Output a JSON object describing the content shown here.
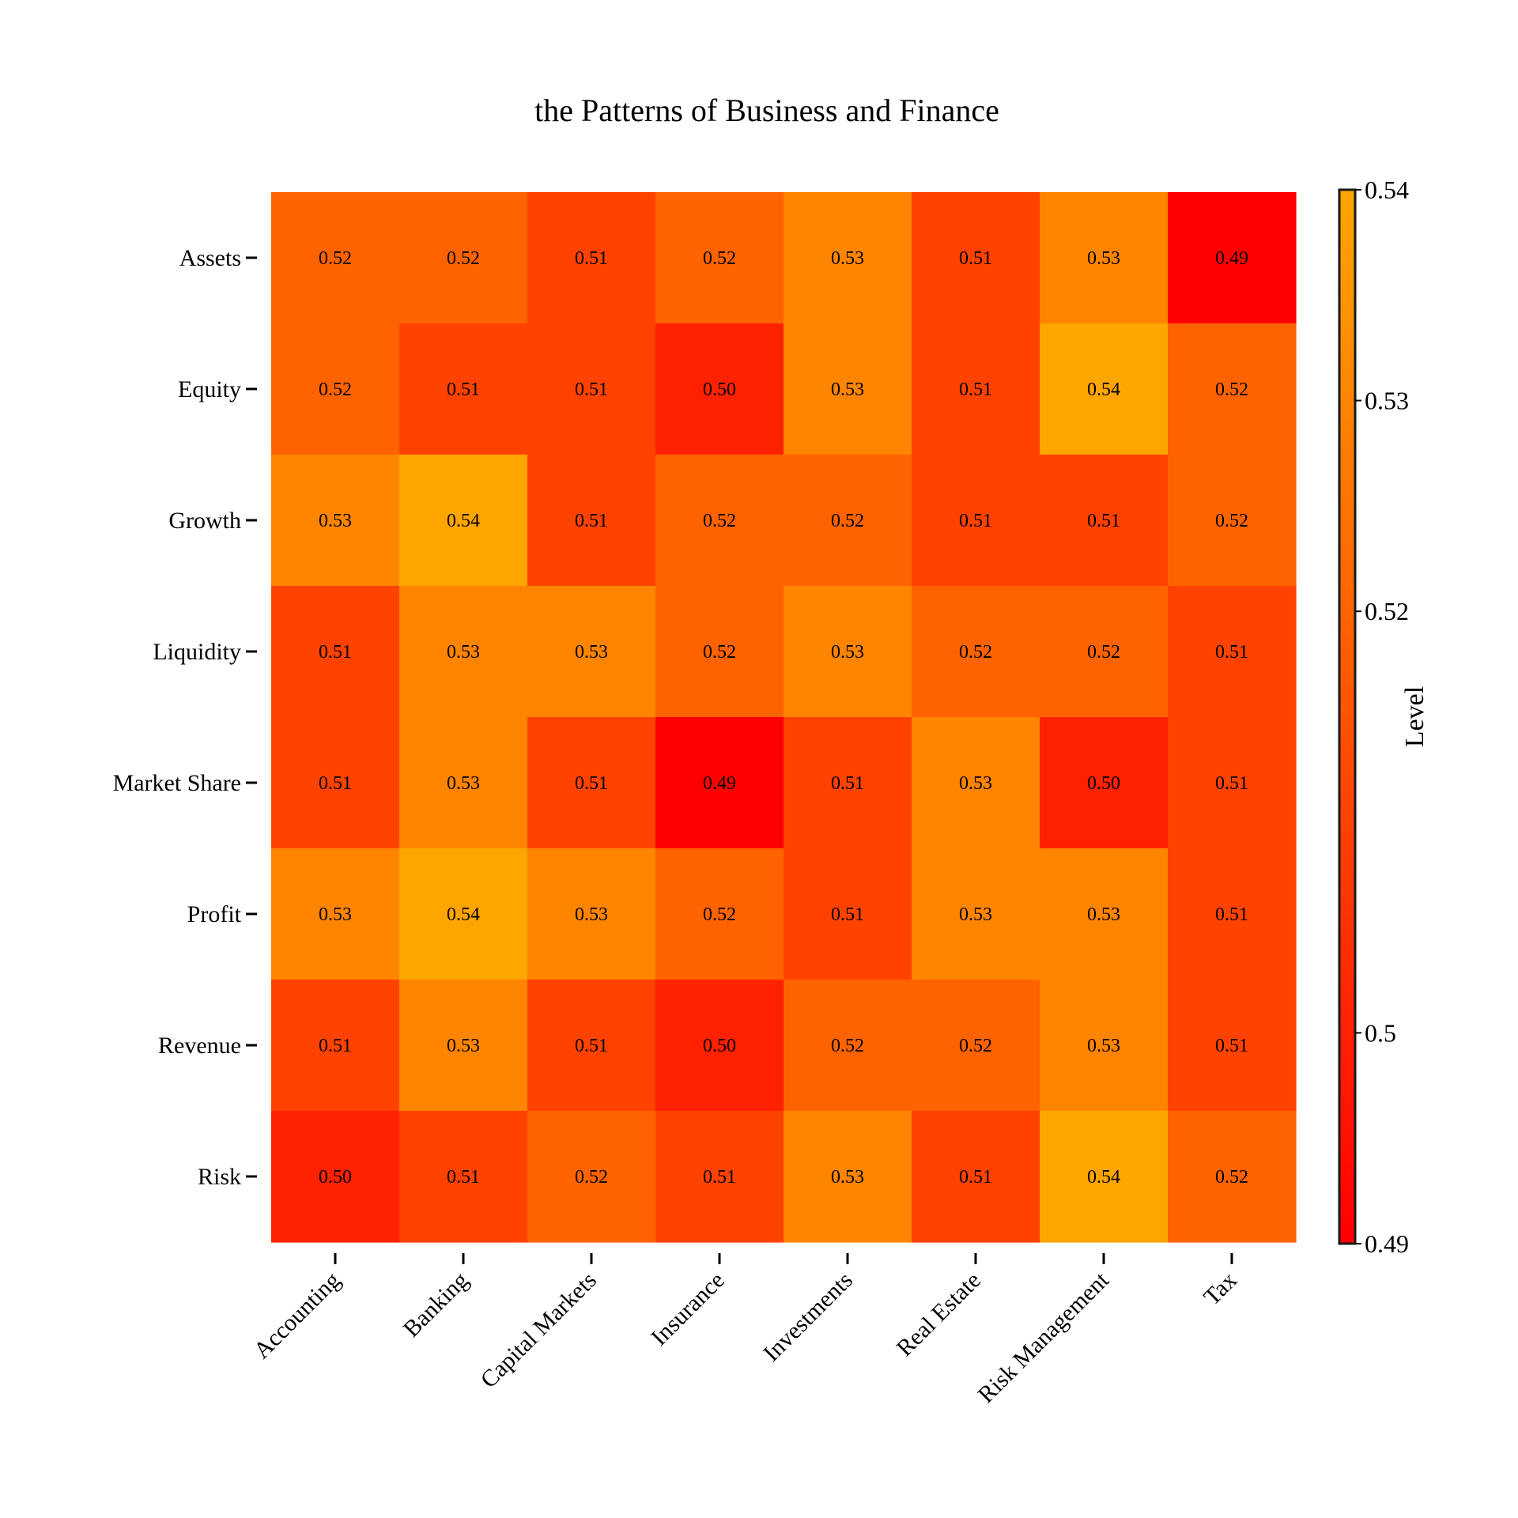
{
  "chart_data": {
    "type": "heatmap",
    "title": "the Patterns of Business and Finance",
    "rows": [
      "Assets",
      "Equity",
      "Growth",
      "Liquidity",
      "Market Share",
      "Profit",
      "Revenue",
      "Risk"
    ],
    "columns": [
      "Accounting",
      "Banking",
      "Capital Markets",
      "Insurance",
      "Investments",
      "Real Estate",
      "Risk Management",
      "Tax"
    ],
    "values": [
      [
        0.52,
        0.52,
        0.51,
        0.52,
        0.53,
        0.51,
        0.53,
        0.49
      ],
      [
        0.52,
        0.51,
        0.51,
        0.5,
        0.53,
        0.51,
        0.54,
        0.52
      ],
      [
        0.53,
        0.54,
        0.51,
        0.52,
        0.52,
        0.51,
        0.51,
        0.52
      ],
      [
        0.51,
        0.53,
        0.53,
        0.52,
        0.53,
        0.52,
        0.52,
        0.51
      ],
      [
        0.51,
        0.53,
        0.51,
        0.49,
        0.51,
        0.53,
        0.5,
        0.51
      ],
      [
        0.53,
        0.54,
        0.53,
        0.52,
        0.51,
        0.53,
        0.53,
        0.51
      ],
      [
        0.51,
        0.53,
        0.51,
        0.5,
        0.52,
        0.52,
        0.53,
        0.51
      ],
      [
        0.5,
        0.51,
        0.52,
        0.51,
        0.53,
        0.51,
        0.54,
        0.52
      ]
    ],
    "cell_labels": [
      [
        "0.52",
        "0.52",
        "0.51",
        "0.52",
        "0.53",
        "0.51",
        "0.53",
        "0.49"
      ],
      [
        "0.52",
        "0.51",
        "0.51",
        "0.50",
        "0.53",
        "0.51",
        "0.54",
        "0.52"
      ],
      [
        "0.53",
        "0.54",
        "0.51",
        "0.52",
        "0.52",
        "0.51",
        "0.51",
        "0.52"
      ],
      [
        "0.51",
        "0.53",
        "0.53",
        "0.52",
        "0.53",
        "0.52",
        "0.52",
        "0.51"
      ],
      [
        "0.51",
        "0.53",
        "0.51",
        "0.49",
        "0.51",
        "0.53",
        "0.50",
        "0.51"
      ],
      [
        "0.53",
        "0.54",
        "0.53",
        "0.52",
        "0.51",
        "0.53",
        "0.53",
        "0.51"
      ],
      [
        "0.51",
        "0.53",
        "0.51",
        "0.50",
        "0.52",
        "0.52",
        "0.53",
        "0.51"
      ],
      [
        "0.50",
        "0.51",
        "0.52",
        "0.51",
        "0.53",
        "0.51",
        "0.54",
        "0.52"
      ]
    ],
    "colorbar": {
      "label": "Level",
      "range": [
        0.49,
        0.54
      ],
      "ticks": [
        0.54,
        0.53,
        0.52,
        0.5,
        0.49
      ],
      "tick_labels": [
        "0.54",
        "0.53",
        "0.52",
        "0.5",
        "0.49"
      ],
      "colormap": [
        "#ff0000",
        "#ffa500"
      ]
    }
  }
}
